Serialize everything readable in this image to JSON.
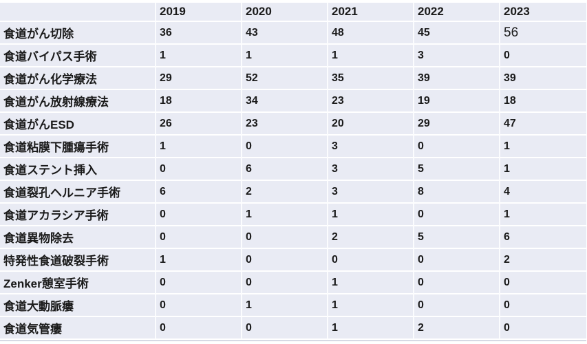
{
  "colors": {
    "row_background": "#e9ebf4",
    "text": "#1a1a1a",
    "gridline": "#ffffff",
    "table_bottom_border": "#d6d9e4"
  },
  "chart_data": {
    "type": "table",
    "title": "",
    "columns": [
      "2019",
      "2020",
      "2021",
      "2022",
      "2023"
    ],
    "rows": [
      {
        "label": "食道がん切除",
        "values": [
          36,
          43,
          48,
          45,
          56
        ]
      },
      {
        "label": "食道バイパス手術",
        "values": [
          1,
          1,
          1,
          3,
          0
        ]
      },
      {
        "label": "食道がん化学療法",
        "values": [
          29,
          52,
          35,
          39,
          39
        ]
      },
      {
        "label": "食道がん放射線療法",
        "values": [
          18,
          34,
          23,
          19,
          18
        ]
      },
      {
        "label": "食道がんESD",
        "values": [
          26,
          23,
          20,
          29,
          47
        ]
      },
      {
        "label": "食道粘膜下腫瘍手術",
        "values": [
          1,
          0,
          3,
          0,
          1
        ]
      },
      {
        "label": "食道ステント挿入",
        "values": [
          0,
          6,
          3,
          5,
          1
        ]
      },
      {
        "label": "食道裂孔ヘルニア手術",
        "values": [
          6,
          2,
          3,
          8,
          4
        ]
      },
      {
        "label": "食道アカラシア手術",
        "values": [
          0,
          1,
          1,
          0,
          1
        ]
      },
      {
        "label": "食道異物除去",
        "values": [
          0,
          0,
          2,
          5,
          6
        ]
      },
      {
        "label": "特発性食道破裂手術",
        "values": [
          1,
          0,
          0,
          0,
          2
        ]
      },
      {
        "label": "Zenker憩室手術",
        "values": [
          0,
          0,
          1,
          0,
          0
        ]
      },
      {
        "label": "食道大動脈瘻",
        "values": [
          0,
          1,
          1,
          0,
          0
        ]
      },
      {
        "label": "食道気管瘻",
        "values": [
          0,
          0,
          1,
          2,
          0
        ]
      }
    ]
  }
}
